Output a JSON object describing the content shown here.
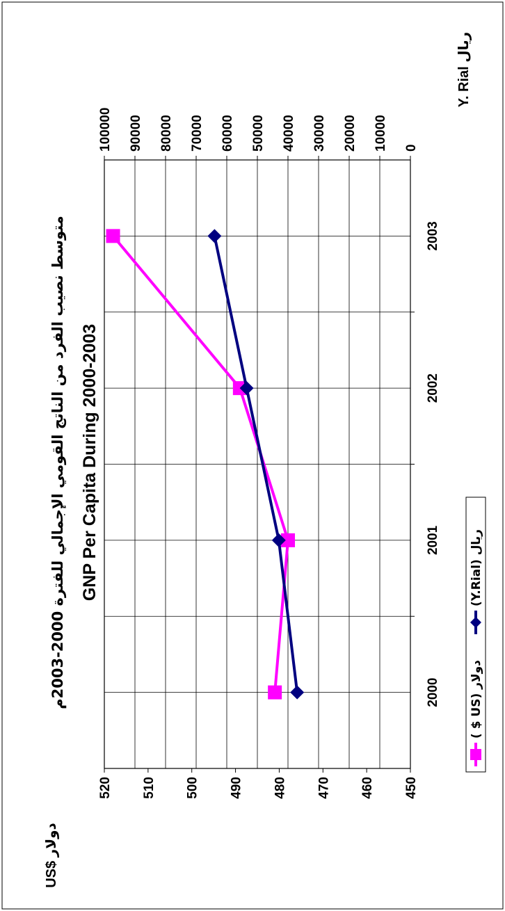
{
  "chart_data": {
    "type": "line",
    "title": "GNP Per Capita During 2000-2003",
    "title_arabic": "متوسط نصيب الفرد من الناتج القومي الإجمالي للفترة 2000-2003م",
    "categories": [
      "2000",
      "2001",
      "2002",
      "2003"
    ],
    "y_left": {
      "label": "US$ دولار",
      "ticks": [
        "450",
        "460",
        "470",
        "480",
        "490",
        "500",
        "510",
        "520"
      ],
      "range": [
        450,
        520
      ]
    },
    "y_right": {
      "label": "Y. Rial ريال",
      "ticks": [
        "0",
        "10000",
        "20000",
        "30000",
        "40000",
        "50000",
        "60000",
        "70000",
        "80000",
        "90000",
        "100000"
      ],
      "range": [
        0,
        100000
      ]
    },
    "series": [
      {
        "name": "( $ US) دولار",
        "axis": "left",
        "color": "#ff00ff",
        "marker": "square",
        "values": [
          481,
          478,
          489,
          518
        ]
      },
      {
        "name": "(Y.Rial) ريال",
        "axis": "right",
        "color": "#000080",
        "marker": "diamond",
        "values": [
          37000,
          43000,
          53500,
          64000
        ]
      }
    ],
    "grid": true,
    "legend_position": "bottom"
  }
}
